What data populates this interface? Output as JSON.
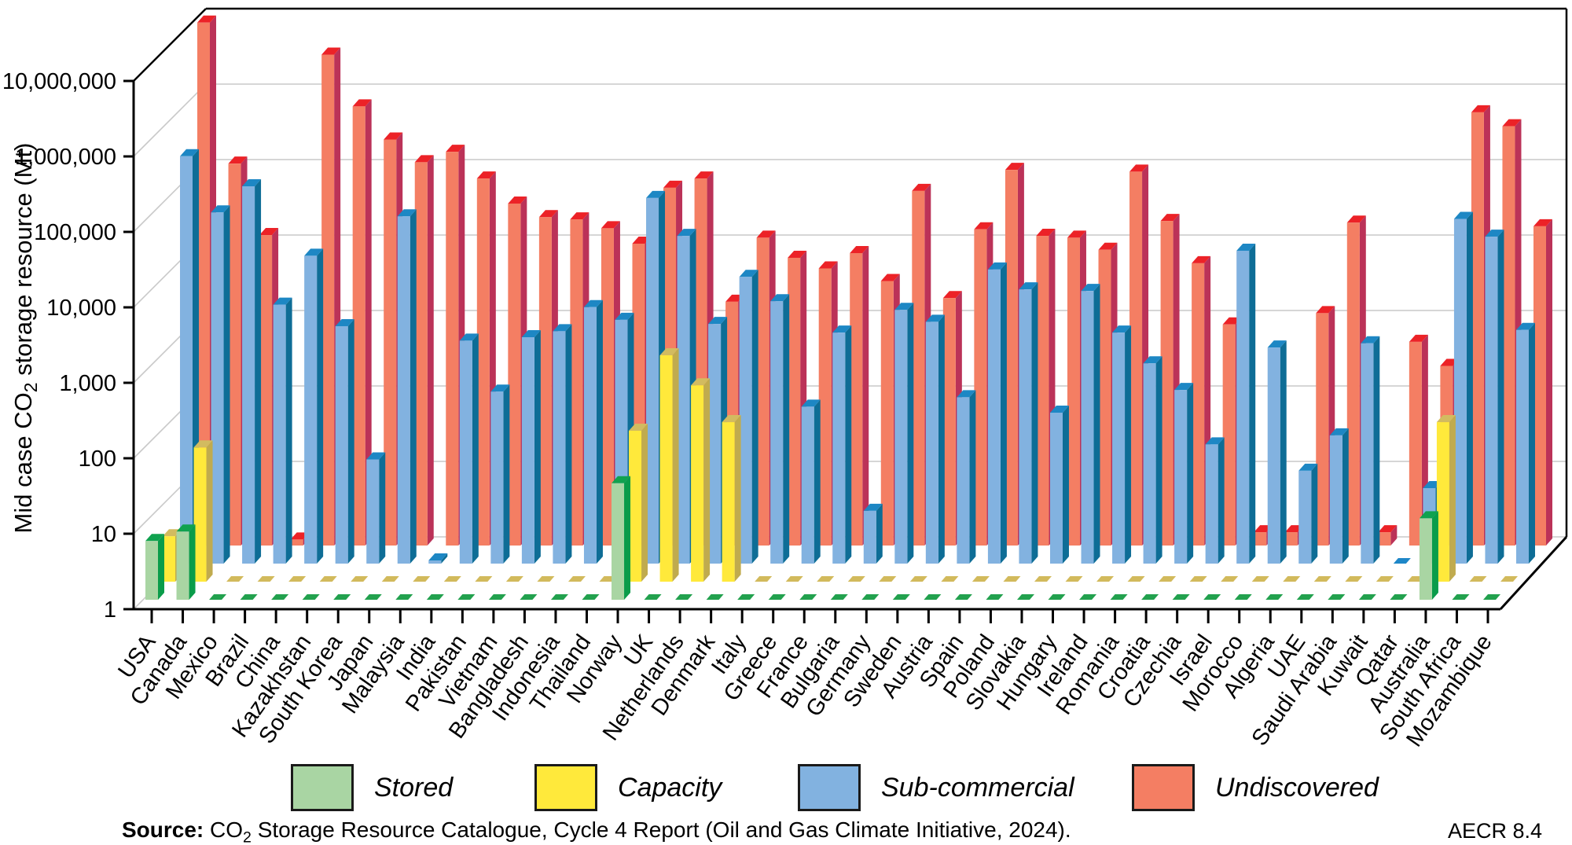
{
  "chart_data": {
    "type": "bar",
    "projection": "3d-oblique",
    "yscale": "log",
    "ylim": [
      1,
      10000000
    ],
    "ytick_labels": [
      "1",
      "10",
      "100",
      "1,000",
      "10,000",
      "100,000",
      "1,000,000",
      "10,000,000"
    ],
    "ylabel": {
      "pre": "Mid case CO",
      "sub": "2",
      "post": " storage resource (Mt)"
    },
    "grid": true,
    "legend_position": "bottom",
    "categories": [
      "USA",
      "Canada",
      "Mexico",
      "Brazil",
      "China",
      "Kazakhstan",
      "South Korea",
      "Japan",
      "Malaysia",
      "India",
      "Pakistan",
      "Vietnam",
      "Bangladesh",
      "Indonesia",
      "Thailand",
      "Norway",
      "UK",
      "Netherlands",
      "Denmark",
      "Italy",
      "Greece",
      "France",
      "Bulgaria",
      "Germany",
      "Sweden",
      "Austria",
      "Spain",
      "Poland",
      "Slovakia",
      "Hungary",
      "Ireland",
      "Romania",
      "Croatia",
      "Czechia",
      "Israel",
      "Morocco",
      "Algeria",
      "UAE",
      "Saudi Arabia",
      "Kuwait",
      "Qatar",
      "Australia",
      "South Africa",
      "Mozambique"
    ],
    "series": [
      {
        "name": "Stored",
        "color": "#a9d5a3",
        "side": "#0a9c4a",
        "cap": "#10a24f",
        "dash": "#22a14e",
        "values": [
          6,
          8,
          null,
          null,
          null,
          null,
          null,
          null,
          null,
          null,
          null,
          null,
          null,
          null,
          null,
          35,
          null,
          null,
          null,
          null,
          null,
          null,
          null,
          null,
          null,
          null,
          null,
          null,
          null,
          null,
          null,
          null,
          null,
          null,
          null,
          null,
          null,
          null,
          null,
          null,
          null,
          12,
          null,
          null
        ]
      },
      {
        "name": "Capacity",
        "color": "#ffe93b",
        "side": "#c0ab4e",
        "cap": "#d2bb60",
        "dash": "#d2ba5c",
        "values": [
          4,
          60,
          null,
          null,
          null,
          null,
          null,
          null,
          null,
          null,
          null,
          null,
          null,
          null,
          null,
          100,
          1000,
          400,
          130,
          null,
          null,
          null,
          null,
          null,
          null,
          null,
          null,
          null,
          null,
          null,
          null,
          null,
          null,
          null,
          null,
          null,
          null,
          null,
          null,
          null,
          null,
          130,
          null,
          null
        ]
      },
      {
        "name": "Sub-commercial",
        "color": "#82b2e0",
        "side": "#0e6d96",
        "cap": "#1d87c4",
        "dash": "#1e87c8",
        "values": [
          250000,
          45000,
          100000,
          2700,
          12000,
          1400,
          24,
          40000,
          1.1,
          900,
          190,
          1000,
          1200,
          2500,
          1700,
          70000,
          22000,
          1500,
          6300,
          3000,
          120,
          1150,
          5,
          2300,
          1600,
          160,
          7900,
          4300,
          100,
          4100,
          1150,
          450,
          200,
          38,
          14000,
          730,
          17,
          50,
          830,
          null,
          10,
          37000,
          21500,
          1250
        ]
      },
      {
        "name": "Undiscovered",
        "color": "#f47e63",
        "side": "#bb3258",
        "cap": "#ec2227",
        "dash": "#e8483d",
        "values": [
          8500000,
          115000,
          13000,
          1.2,
          3200000,
          660000,
          240000,
          120000,
          165000,
          73000,
          34000,
          22500,
          21000,
          16000,
          10000,
          55000,
          73000,
          1700,
          12000,
          6500,
          4700,
          7500,
          3200,
          50000,
          1900,
          15500,
          95000,
          12700,
          12000,
          8300,
          90000,
          20000,
          5500,
          850,
          1.5,
          1.5,
          1200,
          19000,
          1.5,
          500,
          240,
          550000,
          360000,
          17000
        ]
      }
    ]
  },
  "source": {
    "label": "Source:",
    "pre": " CO",
    "sub": "2",
    "post": " Storage Resource Catalogue, Cycle 4 Report (Oil and Gas Climate Initiative, 2024)."
  },
  "figure_code": "AECR 8.4"
}
